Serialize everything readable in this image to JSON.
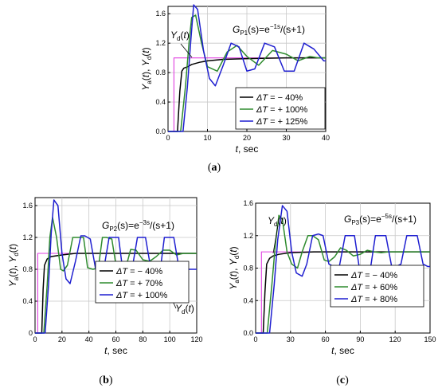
{
  "colors": {
    "setpoint": "#e040e0",
    "black": "#000000",
    "green": "#2e8b2e",
    "blue": "#1f1fd0",
    "grid": "#c8c8c8"
  },
  "chart_data": [
    {
      "type": "line",
      "panel_label": "(a)",
      "transfer_function": "G_P1(s)=e^{-1s}/(s+1)",
      "tf_main": "G",
      "tf_sub": "P1",
      "tf_mid": "(s)=e",
      "tf_sup": "−1s",
      "tf_end": "/(s+1)",
      "ylabel": "Y_a(t), Y_d(t)",
      "xlabel": "t, sec",
      "xlim": [
        0,
        40
      ],
      "ylim": [
        0,
        1.7
      ],
      "xticks": [
        0,
        10,
        20,
        30,
        40
      ],
      "yticks": [
        0.0,
        0.4,
        0.8,
        1.2,
        1.6
      ],
      "ytick_labels": [
        "0.0",
        "0.4",
        "0.8",
        "1.2",
        "1.6"
      ],
      "grid": true,
      "legend_position": "bottom-right",
      "setpoint_label": "Y_d(t)",
      "setpoint": {
        "name": "Y_d(t)",
        "x": [
          0,
          1.5,
          1.5,
          40
        ],
        "y": [
          0,
          0,
          1.0,
          1.0
        ]
      },
      "series": [
        {
          "name": "ΔT = − 40%",
          "color_key": "black",
          "x": [
            0,
            2.4,
            3.0,
            3.5,
            4.0,
            5.0,
            6.0,
            8.0,
            10.0,
            14.0,
            20.0,
            30.0,
            40.0
          ],
          "y": [
            0,
            0,
            0.55,
            0.82,
            0.86,
            0.88,
            0.91,
            0.94,
            0.96,
            0.98,
            0.99,
            1.0,
            1.0
          ]
        },
        {
          "name": "ΔT = + 100%",
          "color_key": "green",
          "x": [
            0,
            3.2,
            4.4,
            5.4,
            6.0,
            7.0,
            8.5,
            10.0,
            12.5,
            15.0,
            17.5,
            20.0,
            23.0,
            26.5,
            30.0,
            33.0,
            36.0,
            38.0,
            40.0
          ],
          "y": [
            0,
            0,
            0.6,
            1.25,
            1.55,
            1.58,
            1.2,
            0.88,
            0.82,
            1.08,
            1.17,
            1.02,
            0.9,
            1.1,
            1.05,
            0.96,
            1.02,
            1.0,
            1.0
          ]
        },
        {
          "name": "ΔT = + 125%",
          "color_key": "blue",
          "x": [
            0,
            3.8,
            4.9,
            5.8,
            6.5,
            7.5,
            9.0,
            10.5,
            12.0,
            14.0,
            16.0,
            18.0,
            20.0,
            22.0,
            24.5,
            27.0,
            29.5,
            32.0,
            34.5,
            37.0,
            39.5,
            40.0
          ],
          "y": [
            0,
            0,
            0.6,
            1.25,
            1.72,
            1.66,
            1.1,
            0.72,
            0.62,
            0.9,
            1.2,
            1.15,
            0.82,
            0.85,
            1.2,
            1.15,
            0.82,
            0.82,
            1.2,
            1.12,
            0.96,
            0.96
          ]
        }
      ]
    },
    {
      "type": "line",
      "panel_label": "(b)",
      "transfer_function": "G_P2(s)=e^{-3s}/(s+1)",
      "tf_main": "G",
      "tf_sub": "P2",
      "tf_mid": "(s)=e",
      "tf_sup": "−3s",
      "tf_end": "/(s+1)",
      "ylabel": "Y_a(t), Y_d(t)",
      "xlabel": "t, sec",
      "xlim": [
        0,
        120
      ],
      "ylim": [
        0,
        1.7
      ],
      "xticks": [
        0,
        20,
        40,
        60,
        80,
        100,
        120
      ],
      "yticks": [
        0.0,
        0.4,
        0.8,
        1.2,
        1.6
      ],
      "ytick_labels": [
        "0",
        "0.4",
        "0.8",
        "1.2",
        "1.6"
      ],
      "grid": true,
      "legend_position": "bottom-right",
      "setpoint_label": "Y_d(t)",
      "setpoint": {
        "name": "Y_d(t)",
        "x": [
          0,
          2,
          2,
          120
        ],
        "y": [
          0,
          0,
          1.0,
          1.0
        ]
      },
      "series": [
        {
          "name": "ΔT = − 40%",
          "color_key": "black",
          "x": [
            0,
            5,
            6,
            7,
            9,
            12,
            20,
            30,
            50,
            80,
            120
          ],
          "y": [
            0,
            0,
            0.55,
            0.85,
            0.93,
            0.96,
            0.98,
            1.0,
            1.0,
            1.0,
            1.0
          ]
        },
        {
          "name": "ΔT = + 70%",
          "color_key": "green",
          "x": [
            0,
            6.5,
            9,
            11,
            13,
            16,
            19,
            21,
            24,
            28,
            33,
            36,
            39,
            43,
            47,
            50,
            53,
            57,
            60,
            64,
            68,
            71,
            75,
            80,
            85,
            90,
            95,
            100,
            105,
            110,
            115,
            120
          ],
          "y": [
            0,
            0,
            0.6,
            1.2,
            1.45,
            1.2,
            0.8,
            0.78,
            0.85,
            1.2,
            1.2,
            1.2,
            0.82,
            0.8,
            0.82,
            1.2,
            1.2,
            1.18,
            0.86,
            0.82,
            0.86,
            1.05,
            1.04,
            0.92,
            0.9,
            0.96,
            1.04,
            1.04,
            0.98,
            1.0,
            1.0,
            1.0
          ]
        },
        {
          "name": "ΔT = + 100%",
          "color_key": "blue",
          "x": [
            0,
            7.5,
            10,
            12,
            14,
            17,
            20,
            23,
            26,
            30,
            34,
            37,
            41,
            45,
            48,
            51,
            55,
            58,
            62,
            65,
            68,
            72,
            76,
            79,
            82,
            86,
            89,
            93,
            96,
            99,
            103,
            107,
            110,
            113,
            117,
            120
          ],
          "y": [
            0,
            0,
            0.6,
            1.25,
            1.67,
            1.6,
            1.0,
            0.68,
            0.62,
            0.9,
            1.22,
            1.22,
            1.18,
            0.8,
            0.78,
            0.8,
            1.2,
            1.2,
            1.2,
            0.8,
            0.78,
            0.8,
            1.2,
            1.2,
            1.2,
            0.8,
            0.78,
            0.8,
            1.2,
            1.2,
            1.2,
            0.8,
            0.78,
            0.8,
            0.8,
            0.8
          ]
        }
      ]
    },
    {
      "type": "line",
      "panel_label": "(c)",
      "transfer_function": "G_P3(s)=e^{-5s}/(s+1)",
      "tf_main": "G",
      "tf_sub": "P3",
      "tf_mid": "(s)=e",
      "tf_sup": "−5s",
      "tf_end": "/(s+1)",
      "ylabel": "Y_a(t), Y_d(t)",
      "xlabel": "t, sec",
      "xlim": [
        0,
        150
      ],
      "ylim": [
        0,
        1.6
      ],
      "xticks": [
        0,
        30,
        60,
        90,
        120,
        150
      ],
      "yticks": [
        0.0,
        0.4,
        0.8,
        1.2,
        1.6
      ],
      "ytick_labels": [
        "0.0",
        "0.4",
        "0.8",
        "1.2",
        "1.6"
      ],
      "grid": true,
      "legend_position": "bottom-right",
      "setpoint_label": "Y_d(t)",
      "setpoint": {
        "name": "Y_d(t)",
        "x": [
          0,
          5,
          5,
          150
        ],
        "y": [
          0,
          0,
          1.0,
          1.0
        ]
      },
      "series": [
        {
          "name": "ΔT = − 40%",
          "color_key": "black",
          "x": [
            0,
            6.5,
            8,
            9.5,
            12,
            15,
            20,
            30,
            50,
            90,
            150
          ],
          "y": [
            0,
            0,
            0.5,
            0.85,
            0.92,
            0.95,
            0.97,
            0.99,
            1.0,
            1.0,
            1.0
          ]
        },
        {
          "name": "ΔT = + 60%",
          "color_key": "green",
          "x": [
            0,
            10,
            14,
            17,
            20,
            23,
            27,
            31,
            36,
            40,
            45,
            49,
            54,
            59,
            63,
            68,
            73,
            78,
            84,
            90,
            96,
            102,
            108,
            114,
            120,
            130,
            140,
            150
          ],
          "y": [
            0,
            0,
            0.6,
            1.1,
            1.45,
            1.4,
            1.0,
            0.85,
            0.8,
            1.0,
            1.2,
            1.2,
            1.15,
            0.9,
            0.88,
            0.94,
            1.05,
            1.02,
            0.95,
            0.97,
            1.02,
            1.0,
            0.99,
            1.0,
            1.0,
            1.0,
            1.0,
            1.0
          ]
        },
        {
          "name": "ΔT = + 80%",
          "color_key": "blue",
          "x": [
            0,
            12,
            16,
            19,
            23,
            27,
            31,
            35,
            40,
            44,
            49,
            54,
            58,
            63,
            67,
            72,
            77,
            81,
            85,
            89,
            94,
            99,
            103,
            108,
            112,
            117,
            121,
            125,
            130,
            135,
            139,
            144,
            148,
            150
          ],
          "y": [
            0,
            0,
            0.6,
            1.15,
            1.57,
            1.5,
            1.0,
            0.74,
            0.7,
            0.85,
            1.2,
            1.22,
            1.2,
            0.85,
            0.82,
            0.82,
            1.2,
            1.2,
            1.2,
            0.82,
            0.82,
            0.82,
            1.2,
            1.2,
            1.2,
            0.82,
            0.82,
            0.85,
            1.2,
            1.2,
            1.2,
            0.85,
            0.82,
            0.82
          ]
        }
      ]
    }
  ]
}
